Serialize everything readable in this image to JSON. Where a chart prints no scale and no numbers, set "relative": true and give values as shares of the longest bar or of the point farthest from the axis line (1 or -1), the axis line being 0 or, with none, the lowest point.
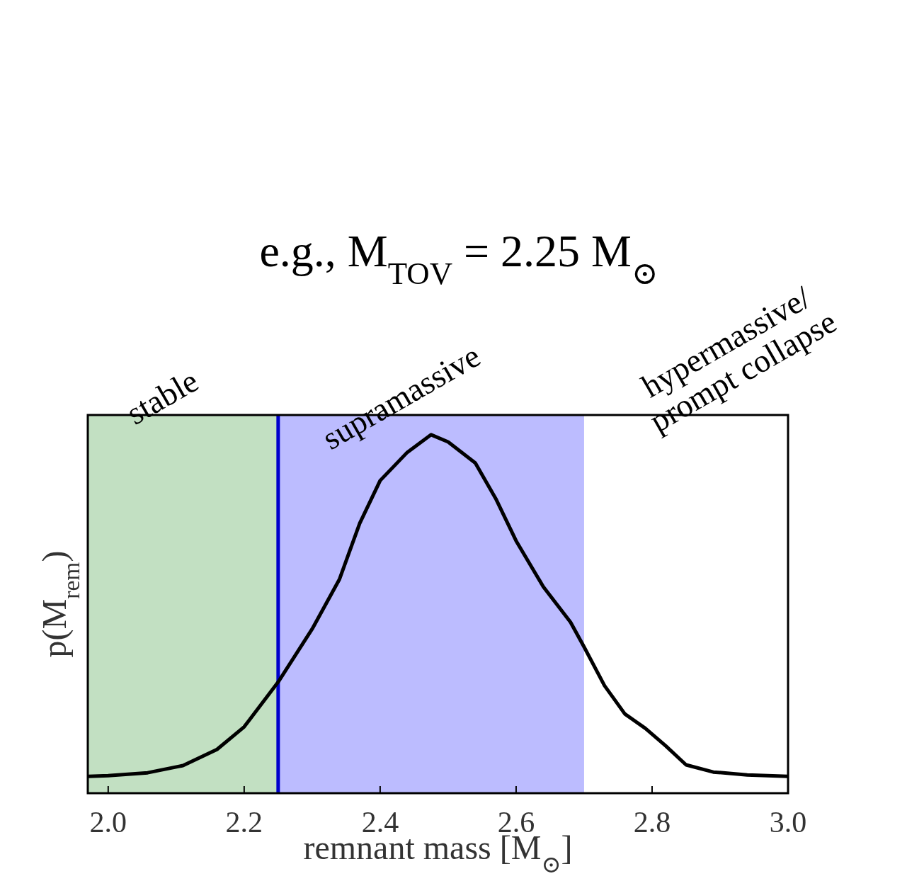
{
  "chart_data": {
    "type": "line",
    "title": "e.g., M$_{TOV}$ = 2.25 M$_{⊙}$",
    "xlabel": "remnant mass [M$_{⊙}$]",
    "ylabel": "p(M$_{rem}$)",
    "relative": true,
    "x": [
      1.971,
      2.0,
      2.058,
      2.11,
      2.16,
      2.2,
      2.25,
      2.3,
      2.34,
      2.37,
      2.4,
      2.44,
      2.475,
      2.5,
      2.54,
      2.57,
      2.6,
      2.64,
      2.68,
      2.7,
      2.73,
      2.76,
      2.79,
      2.82,
      2.85,
      2.89,
      2.94,
      3.0
    ],
    "series": [
      {
        "color": "#000000",
        "values": [
          0.047,
          0.049,
          0.057,
          0.077,
          0.122,
          0.185,
          0.31,
          0.458,
          0.596,
          0.753,
          0.872,
          0.951,
          1.0,
          0.98,
          0.921,
          0.822,
          0.704,
          0.576,
          0.477,
          0.408,
          0.3,
          0.221,
          0.181,
          0.132,
          0.079,
          0.059,
          0.051,
          0.047
        ]
      }
    ],
    "xlim": [
      1.97,
      3.0
    ],
    "xticks": [
      {
        "value": 2.0,
        "label": "2.0"
      },
      2.2,
      2.4,
      2.6,
      2.8,
      {
        "value": 3.0,
        "label": "3.0"
      }
    ],
    "bands": [
      {
        "axis": "x",
        "from": 1.97,
        "to": 2.25,
        "label": "stable",
        "color": "#c2e0c2"
      },
      {
        "axis": "x",
        "from": 2.25,
        "to": 2.7,
        "label": "supramassive",
        "color": "#bcbcff"
      }
    ],
    "ref_lines": [
      {
        "axis": "x",
        "value": 2.25,
        "color": "#0000cc",
        "line_style": "solid"
      }
    ],
    "annotations": [
      "hypermassive/\nprompt collapse"
    ],
    "grid": false,
    "line_style": "solid",
    "marker": "none"
  }
}
